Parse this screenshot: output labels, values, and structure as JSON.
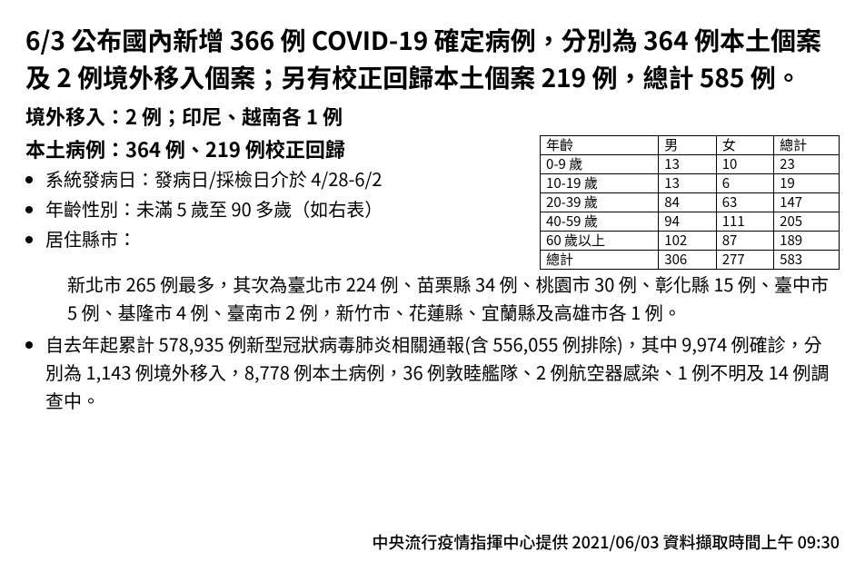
{
  "headline": "6/3 公布國內新增 366 例 COVID-19 確定病例，分別為 364 例本土個案及 2 例境外移入個案；另有校正回歸本土個案 219 例，總計 585 例。",
  "sub_imported": "境外移入：2 例；印尼、越南各 1 例",
  "sub_local": "本土病例：364 例、219 例校正回歸",
  "bullets": {
    "onset": "系統發病日：發病日/採檢日介於 4/28-6/2",
    "age_sex": "年齡性別：未滿 5 歲至 90 多歲（如右表）",
    "city_label": "居住縣市：",
    "city_detail": "新北市 265 例最多，其次為臺北市 224 例、苗栗縣 34 例、桃園市 30 例、彰化縣 15 例、臺中市 5 例、基隆市 4 例、臺南市 2 例，新竹市、花蓮縣、宜蘭縣及高雄市各 1 例。",
    "cumulative": "自去年起累計 578,935 例新型冠狀病毒肺炎相關通報(含 556,055 例排除)，其中 9,974 例確診，分別為 1,143 例境外移入，8,778 例本土病例，36 例敦睦艦隊、2 例航空器感染、1 例不明及 14 例調查中。"
  },
  "age_table": {
    "columns": [
      "年齡",
      "男",
      "女",
      "總計"
    ],
    "rows": [
      [
        "0-9 歲",
        "13",
        "10",
        "23"
      ],
      [
        "10-19 歲",
        "13",
        "6",
        "19"
      ],
      [
        "20-39 歲",
        "84",
        "63",
        "147"
      ],
      [
        "40-59 歲",
        "94",
        "111",
        "205"
      ],
      [
        "60 歲以上",
        "102",
        "87",
        "189"
      ],
      [
        "總計",
        "306",
        "277",
        "583"
      ]
    ],
    "border_color": "#000000",
    "background_color": "#ffffff",
    "font_size_pt": 11
  },
  "footer": "中央流行疫情指揮中心提供  2021/06/03  資料擷取時間上午 09:30",
  "style": {
    "background_color": "#ffffff",
    "text_color": "#000000",
    "headline_fontsize_pt": 21,
    "subline_fontsize_pt": 16,
    "body_fontsize_pt": 15,
    "footer_fontsize_pt": 13
  }
}
